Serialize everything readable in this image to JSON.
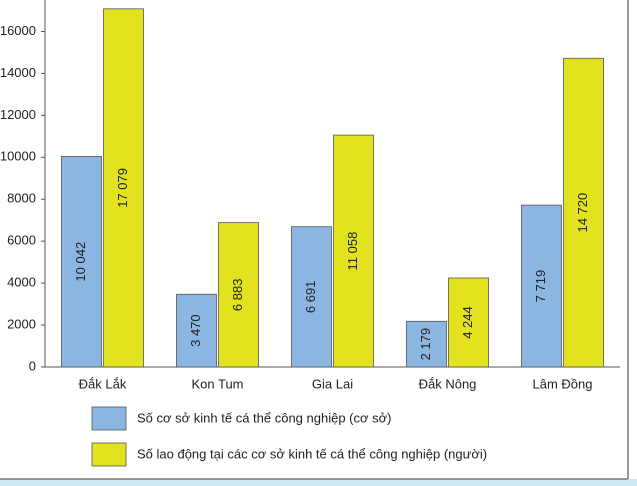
{
  "chart_data": {
    "type": "bar",
    "categories": [
      "Đắk Lắk",
      "Kon Tum",
      "Gia Lai",
      "Đắk Nông",
      "Lâm Đồng"
    ],
    "series": [
      {
        "name": "Số cơ sở kinh tế cá thể công nghiệp (cơ sở)",
        "color": "#8cb6e2",
        "values": [
          10042,
          3470,
          6691,
          2179,
          7719
        ],
        "value_labels": [
          "10 042",
          "3 470",
          "6 691",
          "2 179",
          "7 719"
        ]
      },
      {
        "name": "Số lao động tại các cơ sở kinh tế cá thể công nghiệp (người)",
        "color": "#e2e21e",
        "values": [
          17079,
          6883,
          11058,
          4244,
          14720
        ],
        "value_labels": [
          "17 079",
          "6 883",
          "11 058",
          "4 244",
          "14 720"
        ]
      }
    ],
    "ylim": [
      0,
      17500
    ],
    "yticks": [
      0,
      2000,
      4000,
      6000,
      8000,
      10000,
      12000,
      14000,
      16000
    ]
  }
}
